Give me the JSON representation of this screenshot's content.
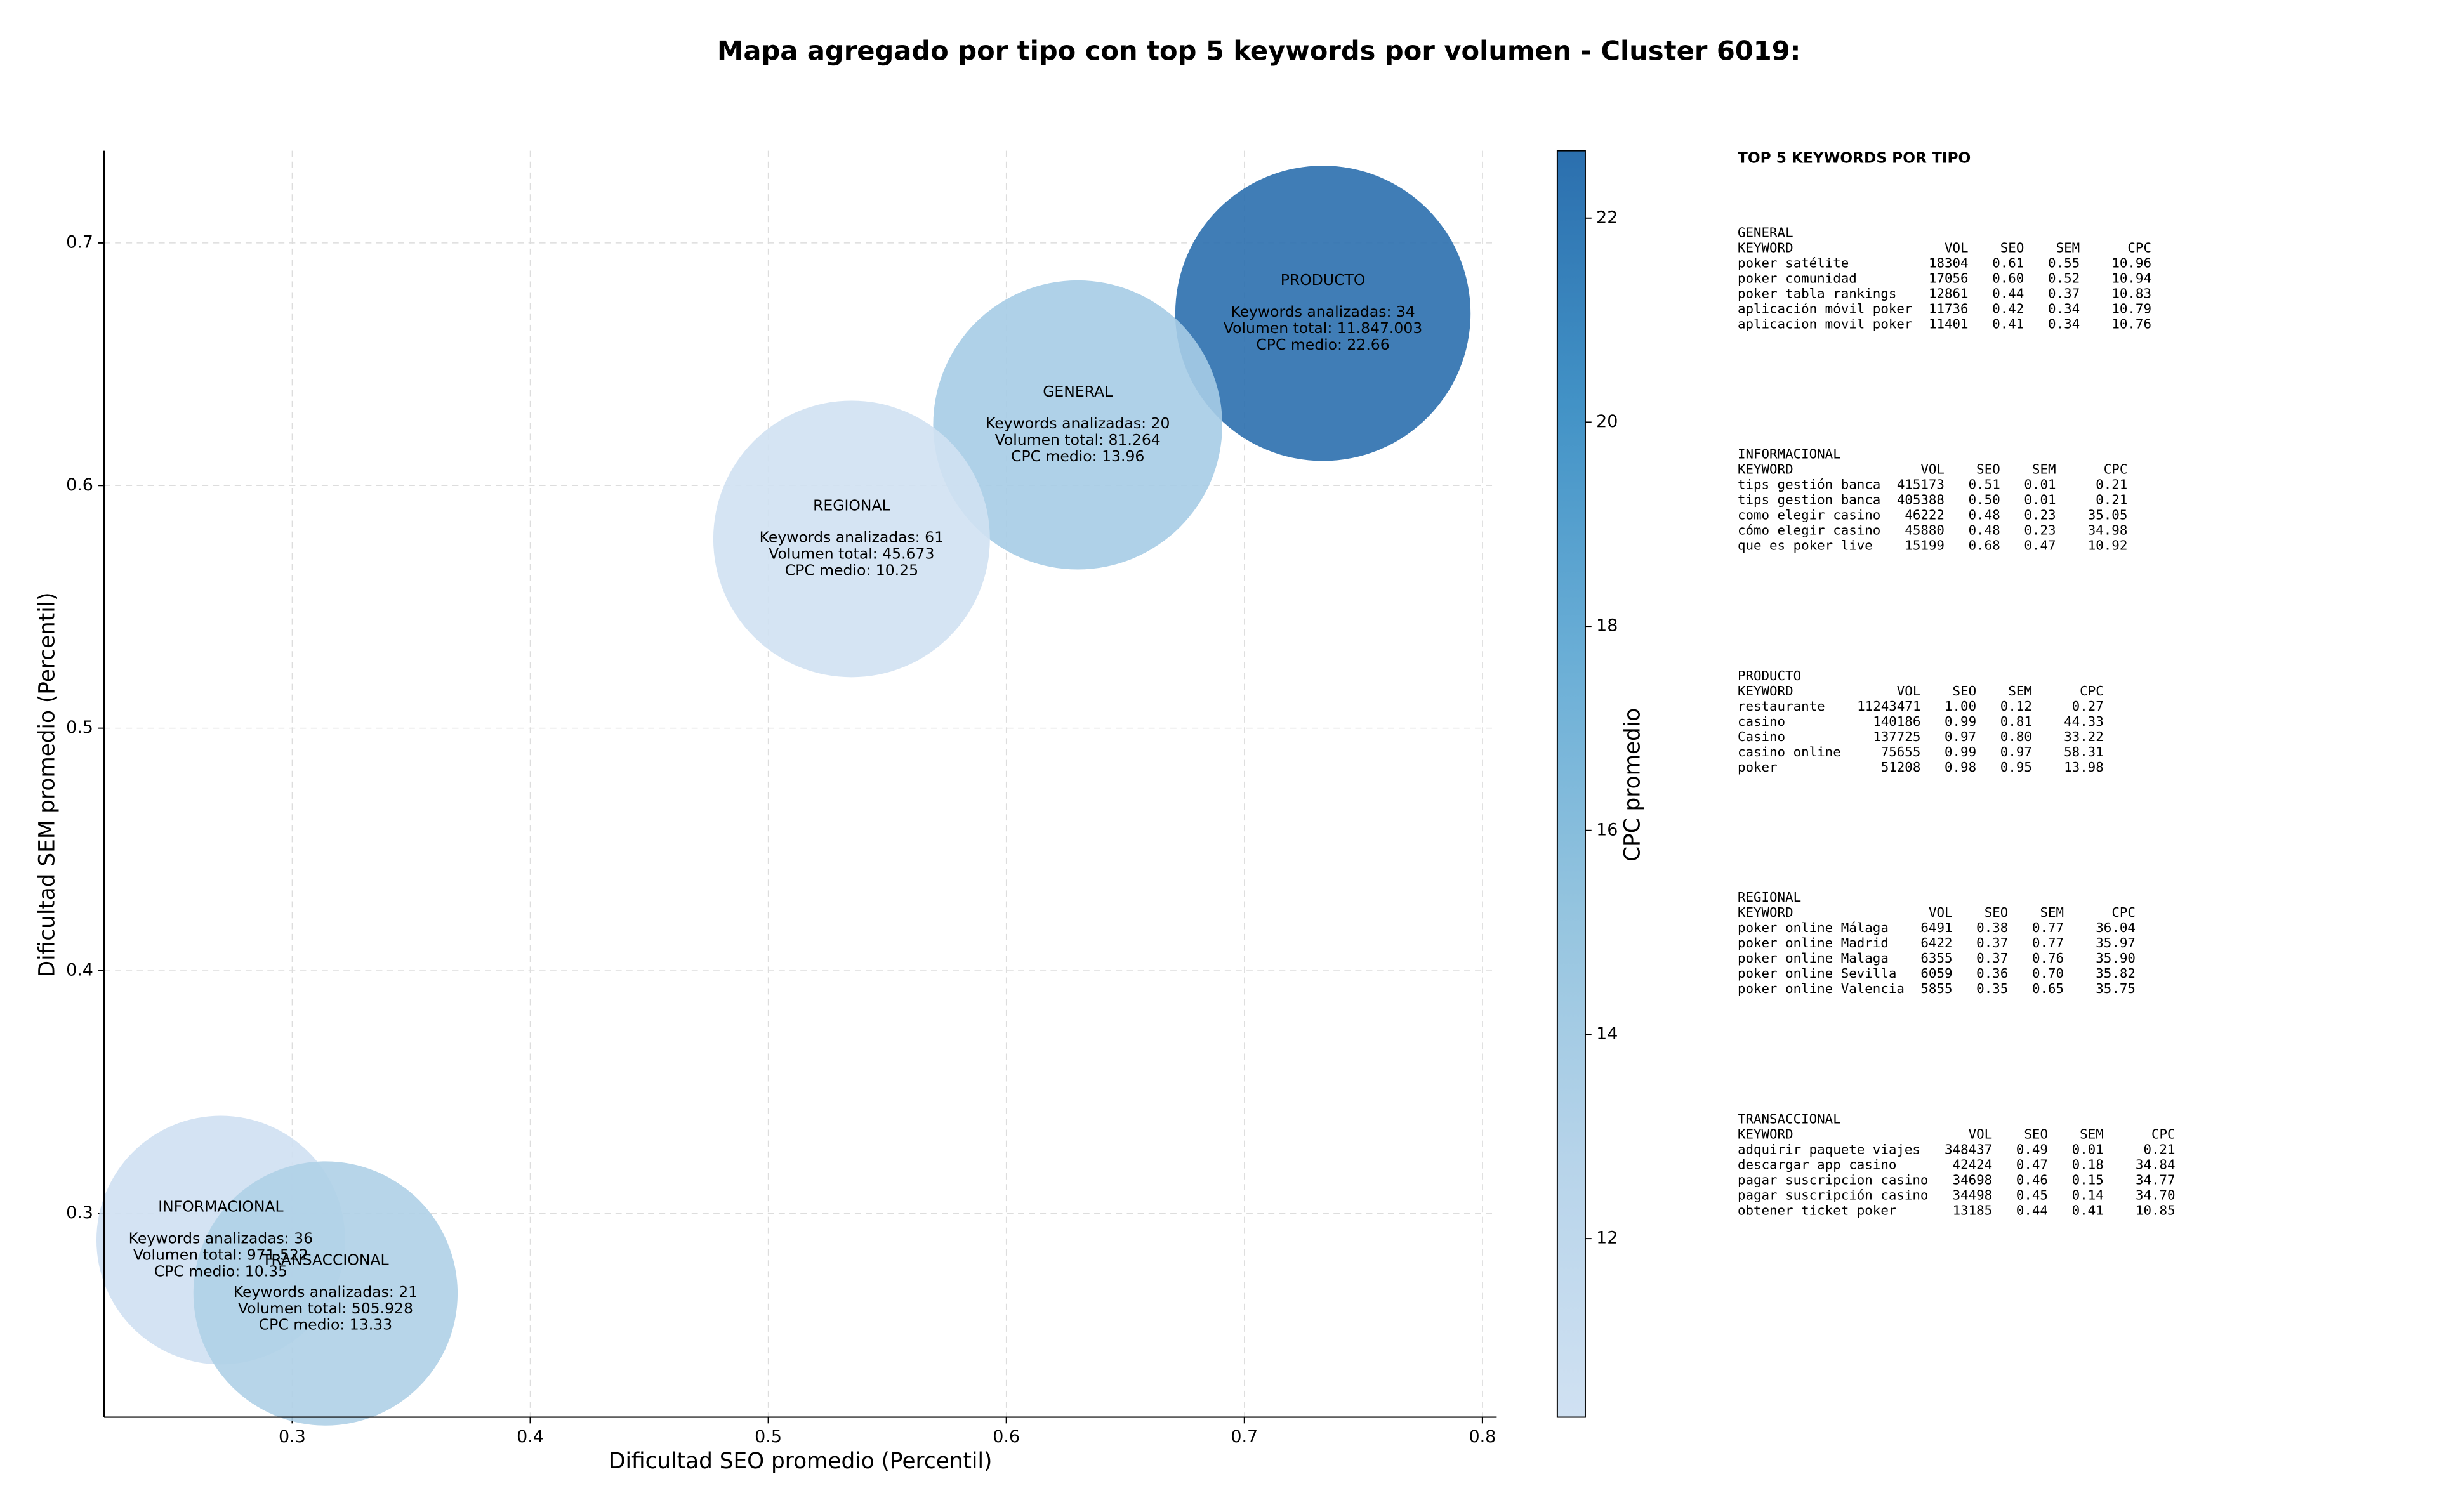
{
  "chart_data": {
    "type": "bubble",
    "title": "Mapa agregado por tipo con top 5 keywords por volumen - Cluster 6019:",
    "x_label": "Dificultad SEO promedio (Percentil)",
    "y_label": "Dificultad SEM promedio (Percentil)",
    "xlim": [
      0.221,
      0.806
    ],
    "ylim": [
      0.216,
      0.738
    ],
    "xticks": [
      0.3,
      0.4,
      0.5,
      0.6,
      0.7,
      0.8
    ],
    "yticks": [
      0.3,
      0.4,
      0.5,
      0.6,
      0.7
    ],
    "grid": true,
    "colorbar": {
      "label": "CPC promedio",
      "lim": [
        10.25,
        22.66
      ],
      "ticks": [
        12,
        14,
        16,
        18,
        20,
        22
      ],
      "colormap": [
        "#d0e1f2",
        "#b7d4ea",
        "#94c4df",
        "#6aaed6",
        "#4292c6",
        "#2b6fae"
      ]
    },
    "series": [
      {
        "name": "PRODUCTO",
        "x": [
          0.733
        ],
        "values": [
          0.671
        ],
        "size": 95,
        "cpc": 22.66,
        "annotation": [
          "Keywords analizadas: 34",
          "Volumen total: 11.847.003",
          "CPC medio: 22.66"
        ]
      },
      {
        "name": "GENERAL",
        "x": [
          0.63
        ],
        "values": [
          0.625
        ],
        "size": 93,
        "cpc": 13.96,
        "annotation": [
          "Keywords analizadas: 20",
          "Volumen total: 81.264",
          "CPC medio: 13.96"
        ]
      },
      {
        "name": "REGIONAL",
        "x": [
          0.535
        ],
        "values": [
          0.578
        ],
        "size": 89,
        "cpc": 10.25,
        "annotation": [
          "Keywords analizadas: 61",
          "Volumen total: 45.673",
          "CPC medio: 10.25"
        ]
      },
      {
        "name": "INFORMACIONAL",
        "x": [
          0.27
        ],
        "values": [
          0.289
        ],
        "size": 80,
        "cpc": 10.35,
        "annotation": [
          "Keywords analizadas: 36",
          "Volumen total: 971.522",
          "CPC medio: 10.35"
        ]
      },
      {
        "name": "TRANSACCIONAL",
        "x": [
          0.314
        ],
        "values": [
          0.267
        ],
        "size": 85,
        "cpc": 13.33,
        "annotation": [
          "Keywords analizadas: 21",
          "Volumen total: 505.928",
          "CPC medio: 13.33"
        ]
      }
    ]
  },
  "side_panel": {
    "title": "TOP 5 KEYWORDS POR TIPO",
    "columns": [
      "KEYWORD",
      "VOL",
      "SEO",
      "SEM",
      "CPC"
    ],
    "groups": [
      {
        "name": "GENERAL",
        "rows": [
          [
            "poker satélite",
            "18304",
            "0.61",
            "0.55",
            "10.96"
          ],
          [
            "poker comunidad",
            "17056",
            "0.60",
            "0.52",
            "10.94"
          ],
          [
            "poker tabla rankings",
            "12861",
            "0.44",
            "0.37",
            "10.83"
          ],
          [
            "aplicación móvil poker",
            "11736",
            "0.42",
            "0.34",
            "10.79"
          ],
          [
            "aplicacion movil poker",
            "11401",
            "0.41",
            "0.34",
            "10.76"
          ]
        ]
      },
      {
        "name": "INFORMACIONAL",
        "rows": [
          [
            "tips gestión banca",
            "415173",
            "0.51",
            "0.01",
            "0.21"
          ],
          [
            "tips gestion banca",
            "405388",
            "0.50",
            "0.01",
            "0.21"
          ],
          [
            "como elegir casino",
            "46222",
            "0.48",
            "0.23",
            "35.05"
          ],
          [
            "cómo elegir casino",
            "45880",
            "0.48",
            "0.23",
            "34.98"
          ],
          [
            "que es poker live",
            "15199",
            "0.68",
            "0.47",
            "10.92"
          ]
        ]
      },
      {
        "name": "PRODUCTO",
        "rows": [
          [
            "restaurante",
            "11243471",
            "1.00",
            "0.12",
            "0.27"
          ],
          [
            "casino",
            "140186",
            "0.99",
            "0.81",
            "44.33"
          ],
          [
            "Casino",
            "137725",
            "0.97",
            "0.80",
            "33.22"
          ],
          [
            "casino online",
            "75655",
            "0.99",
            "0.97",
            "58.31"
          ],
          [
            "poker",
            "51208",
            "0.98",
            "0.95",
            "13.98"
          ]
        ]
      },
      {
        "name": "REGIONAL",
        "rows": [
          [
            "poker online Málaga",
            "6491",
            "0.38",
            "0.77",
            "36.04"
          ],
          [
            "poker online Madrid",
            "6422",
            "0.37",
            "0.77",
            "35.97"
          ],
          [
            "poker online Malaga",
            "6355",
            "0.37",
            "0.76",
            "35.90"
          ],
          [
            "poker online Sevilla",
            "6059",
            "0.36",
            "0.70",
            "35.82"
          ],
          [
            "poker online Valencia",
            "5855",
            "0.35",
            "0.65",
            "35.75"
          ]
        ]
      },
      {
        "name": "TRANSACCIONAL",
        "rows": [
          [
            "adquirir paquete viajes",
            "348437",
            "0.49",
            "0.01",
            "0.21"
          ],
          [
            "descargar app casino",
            "42424",
            "0.47",
            "0.18",
            "34.84"
          ],
          [
            "pagar suscripcion casino",
            "34698",
            "0.46",
            "0.15",
            "34.77"
          ],
          [
            "pagar suscripción casino",
            "34498",
            "0.45",
            "0.14",
            "34.70"
          ],
          [
            "obtener ticket poker",
            "13185",
            "0.44",
            "0.41",
            "10.85"
          ]
        ]
      }
    ]
  }
}
